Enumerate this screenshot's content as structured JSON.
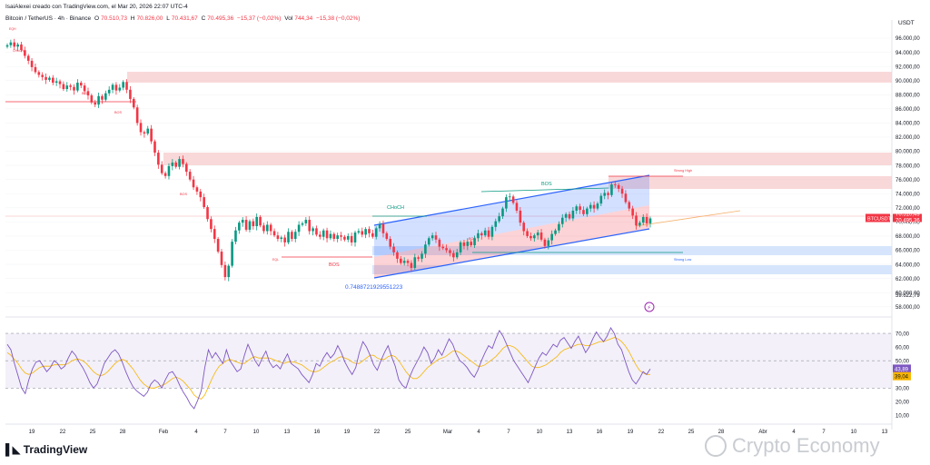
{
  "header": {
    "creator": "IsaiAlexei creado con TradingView.com, el Mar 20, 2026 22:07 UTC-4",
    "symbol": "Bitcoin / TetherUS · 4h · Binance",
    "open_label": "O",
    "open": "70.510,73",
    "high_label": "H",
    "high": "70.826,00",
    "low_label": "L",
    "low": "70.431,67",
    "close_label": "C",
    "close": "70.495,36",
    "change": "−15,37 (−0,02%)",
    "vol_label": "Vol",
    "vol": "744,34",
    "vol_change": "−15,38 (−0,02%)"
  },
  "colors": {
    "up": "#089981",
    "down": "#f23645",
    "channel_blue": "#2962ff",
    "rsi_line": "#7e57c2",
    "rsi_ma": "#f7b500",
    "zone_red": "#f7cbcc",
    "zone_blue": "#cfe0fb"
  },
  "chart_data": [
    {
      "type": "candlestick",
      "title": "",
      "currency": "USDT",
      "x_ticks": [
        "19",
        "22",
        "25",
        "28",
        "Feb",
        "4",
        "7",
        "10",
        "13",
        "16",
        "19",
        "22",
        "25",
        "Mar",
        "4",
        "7",
        "10",
        "13",
        "16",
        "19",
        "22",
        "25",
        "28",
        "Abr",
        "4",
        "7",
        "10",
        "13"
      ],
      "y_ticks": [
        "96.000,00",
        "94.000,00",
        "92.000,00",
        "90.000,00",
        "88.000,00",
        "86.000,00",
        "84.000,00",
        "82.000,00",
        "80.000,00",
        "78.000,00",
        "76.000,00",
        "74.000,00",
        "72.000,00",
        "70.000,00",
        "68.000,00",
        "66.000,00",
        "64.000,00",
        "62.000,00",
        "60.000,00",
        "58.000,00"
      ],
      "ylim": [
        57200,
        97800
      ],
      "close_series": [
        95000,
        95400,
        94800,
        95100,
        94300,
        93500,
        92800,
        91900,
        91200,
        90800,
        90500,
        90100,
        90400,
        89700,
        89900,
        89500,
        88800,
        89300,
        89100,
        88600,
        89700,
        89300,
        88500,
        87900,
        86900,
        86600,
        87800,
        87300,
        88200,
        88700,
        89400,
        88600,
        89000,
        89800,
        88700,
        87400,
        86200,
        84000,
        82700,
        82500,
        83200,
        81400,
        79800,
        78100,
        76900,
        76500,
        77900,
        78400,
        77800,
        78900,
        78200,
        77100,
        76000,
        74900,
        74300,
        73500,
        72100,
        70400,
        69000,
        67600,
        65800,
        63900,
        62200,
        63800,
        67200,
        68800,
        69900,
        70300,
        68900,
        70100,
        69400,
        70700,
        69500,
        68700,
        69600,
        68700,
        68100,
        67600,
        67800,
        67100,
        68600,
        67600,
        68600,
        69600,
        69800,
        70300,
        68700,
        69100,
        68200,
        67900,
        68800,
        67700,
        68300,
        67600,
        68100,
        67900,
        67500,
        68000,
        67100,
        68500,
        68700,
        68200,
        69000,
        68400,
        67900,
        69100,
        69700,
        68400,
        67600,
        66500,
        65700,
        64800,
        64200,
        64500,
        64200,
        63500,
        65000,
        64800,
        65500,
        66800,
        67700,
        68100,
        67500,
        66500,
        66300,
        66000,
        65600,
        65000,
        65700,
        67100,
        66600,
        67200,
        66700,
        67700,
        68400,
        68100,
        68800,
        67900,
        69300,
        70100,
        70800,
        71900,
        73500,
        73600,
        72700,
        71600,
        69900,
        68700,
        68000,
        67700,
        68100,
        68500,
        67500,
        66600,
        67400,
        68300,
        68800,
        69700,
        70600,
        71100,
        70500,
        71600,
        72200,
        71700,
        71100,
        71900,
        72400,
        71900,
        72600,
        73700,
        74100,
        73800,
        75300,
        75200,
        74700,
        74000,
        72800,
        71900,
        70900,
        69500,
        69900,
        70700,
        69800,
        70500
      ],
      "price_label": "70.495,36",
      "symbol_tag": "BTCUSDT",
      "price_tag_top": "70.510,49",
      "countdown": "01:52:21",
      "low_tag": "59.622,79",
      "annotations": {
        "bos_labels": [
          "BOS",
          "BOS",
          "BOS",
          "BOS"
        ],
        "choch_label": "CHoCH",
        "bos_red_label": "BOS",
        "channel_label": "BOS",
        "fib_value": "0.7488721929551223",
        "strong_high": "Strong High",
        "strong_low": "Strong Low",
        "eqh": "EQH",
        "choch_small": "CHoCH",
        "eql": "EQL"
      }
    },
    {
      "type": "line",
      "title": "RSI",
      "y_ticks": [
        "70,00",
        "60,00",
        "50,00",
        "40,00",
        "30,00",
        "20,00",
        "10,00"
      ],
      "ylim": [
        5,
        78
      ],
      "rsi_value": "43,89",
      "ma_value": "39,04",
      "series": [
        {
          "values": [
            62,
            58,
            48,
            39,
            30,
            26,
            36,
            44,
            49,
            50,
            46,
            42,
            45,
            50,
            48,
            44,
            46,
            52,
            57,
            54,
            49,
            45,
            40,
            34,
            30,
            33,
            40,
            48,
            52,
            56,
            58,
            55,
            49,
            42,
            36,
            31,
            28,
            26,
            24,
            27,
            33,
            36,
            34,
            30,
            36,
            41,
            42,
            38,
            32,
            27,
            23,
            18,
            15,
            21,
            28,
            45,
            58,
            52,
            56,
            52,
            48,
            58,
            50,
            46,
            42,
            44,
            54,
            62,
            56,
            50,
            46,
            52,
            57,
            49,
            45,
            47,
            44,
            50,
            55,
            48,
            46,
            44,
            40,
            37,
            34,
            40,
            48,
            46,
            52,
            56,
            52,
            55,
            61,
            56,
            49,
            44,
            40,
            45,
            56,
            64,
            60,
            54,
            47,
            43,
            50,
            56,
            61,
            53,
            46,
            36,
            32,
            30,
            38,
            44,
            49,
            54,
            60,
            56,
            48,
            52,
            58,
            54,
            60,
            66,
            62,
            55,
            50,
            48,
            45,
            41,
            38,
            43,
            50,
            56,
            61,
            59,
            66,
            72,
            68,
            62,
            56,
            50,
            46,
            42,
            38,
            34,
            40,
            46,
            52,
            56,
            54,
            58,
            62,
            60,
            65,
            67,
            63,
            59,
            64,
            68,
            62,
            56,
            60,
            66,
            71,
            67,
            64,
            68,
            74,
            70,
            62,
            58,
            50,
            42,
            36,
            33,
            37,
            42,
            40,
            44
          ]
        },
        {
          "values": [
            56,
            54,
            51,
            48,
            44,
            41,
            40,
            41,
            43,
            45,
            46,
            46,
            46,
            47,
            47,
            47,
            47,
            48,
            50,
            51,
            51,
            50,
            48,
            45,
            42,
            40,
            39,
            40,
            42,
            45,
            48,
            50,
            51,
            50,
            47,
            44,
            40,
            36,
            33,
            31,
            30,
            30,
            31,
            32,
            33,
            35,
            37,
            38,
            37,
            35,
            32,
            29,
            25,
            23,
            22,
            25,
            31,
            37,
            42,
            46,
            48,
            50,
            51,
            50,
            49,
            48,
            48,
            50,
            52,
            53,
            52,
            52,
            52,
            52,
            51,
            50,
            49,
            48,
            49,
            49,
            49,
            48,
            47,
            45,
            43,
            42,
            42,
            43,
            45,
            47,
            49,
            50,
            52,
            53,
            52,
            51,
            49,
            48,
            48,
            50,
            52,
            54,
            54,
            52,
            51,
            51,
            53,
            54,
            53,
            50,
            46,
            42,
            39,
            37,
            37,
            39,
            42,
            45,
            47,
            49,
            51,
            52,
            53,
            55,
            57,
            57,
            56,
            54,
            52,
            50,
            48,
            46,
            46,
            47,
            49,
            51,
            53,
            56,
            59,
            61,
            61,
            60,
            58,
            55,
            52,
            49,
            46,
            45,
            45,
            46,
            47,
            49,
            51,
            53,
            56,
            58,
            59,
            60,
            61,
            62,
            62,
            61,
            61,
            62,
            63,
            64,
            64,
            65,
            66,
            67,
            66,
            64,
            61,
            57,
            52,
            47,
            43,
            41,
            40,
            40
          ]
        }
      ]
    }
  ],
  "footer": {
    "brand": "TradingView",
    "watermark": "Crypto Economy"
  }
}
